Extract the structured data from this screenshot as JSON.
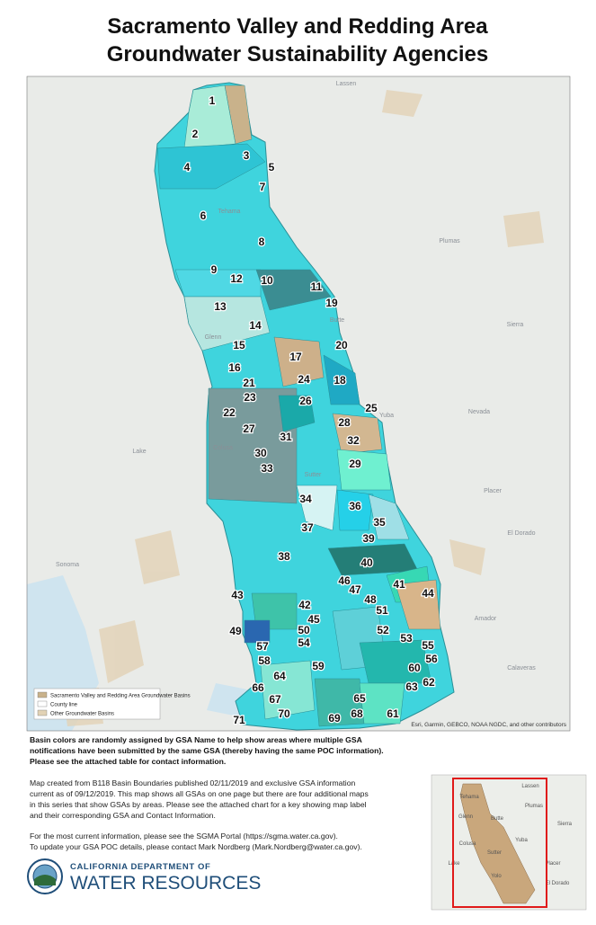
{
  "title": [
    "Sacramento Valley and Redding Area",
    "Groundwater Sustainability Agencies"
  ],
  "map": {
    "gsa_labels": [
      "1",
      "2",
      "3",
      "4",
      "5",
      "6",
      "7",
      "8",
      "9",
      "10",
      "11",
      "12",
      "13",
      "14",
      "15",
      "16",
      "17",
      "18",
      "19",
      "20",
      "21",
      "22",
      "23",
      "24",
      "25",
      "26",
      "27",
      "28",
      "29",
      "30",
      "31",
      "32",
      "33",
      "34",
      "35",
      "36",
      "37",
      "38",
      "39",
      "40",
      "41",
      "42",
      "43",
      "44",
      "45",
      "46",
      "47",
      "48",
      "49",
      "50",
      "51",
      "52",
      "53",
      "54",
      "55",
      "56",
      "57",
      "58",
      "59",
      "60",
      "61",
      "62",
      "63",
      "64",
      "65",
      "66",
      "67",
      "68",
      "69",
      "70",
      "71"
    ],
    "place_labels": [
      "Lassen",
      "Tehama",
      "Plumas",
      "Butte",
      "Glenn",
      "Sierra",
      "Yuba",
      "Nevada",
      "Lake",
      "Colusa",
      "Sutter",
      "Placer",
      "El Dorado",
      "Sonoma",
      "Amador",
      "Calaveras"
    ],
    "legend": [
      "Sacramento Valley and Redding Area Groundwater Basins",
      "County line",
      "Other Groundwater Basins"
    ],
    "attribution": "Esri, Garmin, GEBCO, NOAA NGDC, and other contributors"
  },
  "notes": {
    "bold": [
      "Basin colors are randomly assigned by GSA Name to help show areas where multiple GSA",
      "notifications have been submitted by the same GSA (thereby having the same POC information).",
      "Please see the attached table for contact information."
    ],
    "paragraph": [
      "Map created from B118 Basin Boundaries published 02/11/2019 and exclusive GSA information",
      "current as of 09/12/2019. This map shows all GSAs on one page but there are four additional maps",
      "in this series that show GSAs by areas. Please see the attached chart for a key showing map label",
      "and their corresponding GSA and Contact Information."
    ],
    "contact": [
      "For the most current information, please see the SGMA Portal (https://sgma.water.ca.gov).",
      "To update your GSA POC details, please contact Mark Nordberg (Mark.Nordberg@water.ca.gov)."
    ]
  },
  "logo": [
    "CALIFORNIA DEPARTMENT OF",
    "WATER RESOURCES"
  ],
  "inset": {
    "place_labels": [
      "Lassen",
      "Tehama",
      "Plumas",
      "Glenn",
      "Butte",
      "Sierra",
      "Yuba",
      "Colusa",
      "Lake",
      "Sutter",
      "Placer",
      "Yolo",
      "El Dorado"
    ]
  }
}
